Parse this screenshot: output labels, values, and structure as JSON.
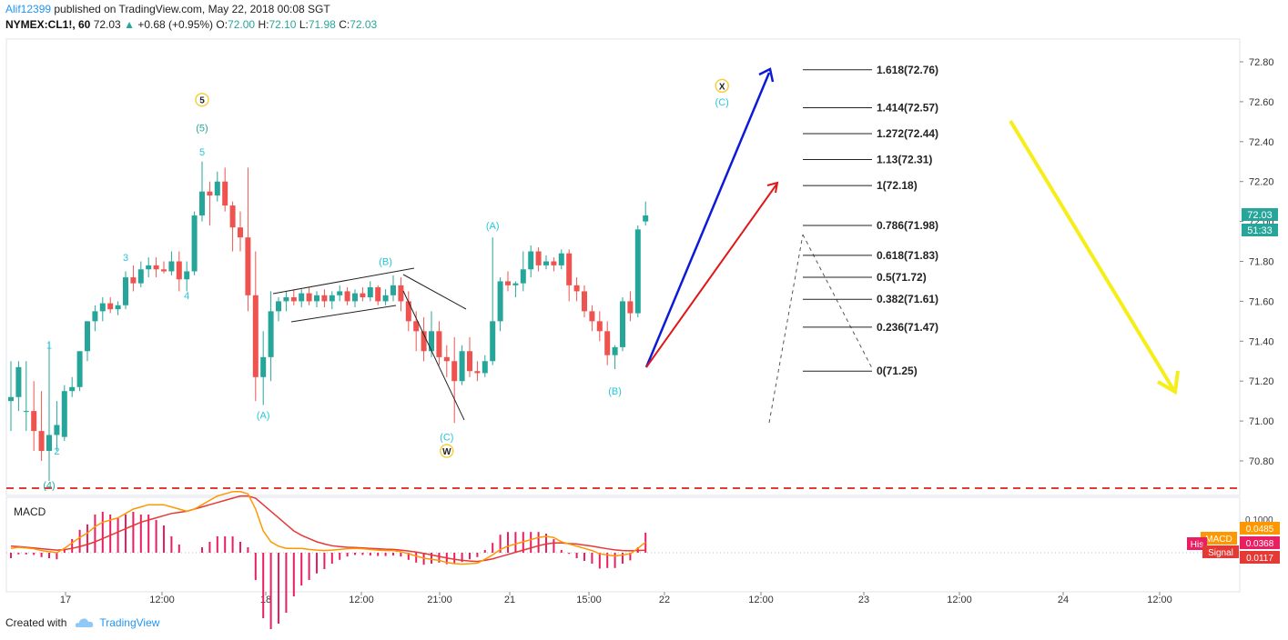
{
  "header": {
    "user": "Alif12399",
    "published": " published on TradingView.com, May 22, 2018 00:08 SGT",
    "symbol": "NYMEX:CL1!, 60",
    "last": "72.03",
    "arrow": "▲",
    "change": "+0.68 (+0.95%)",
    "o_label": "O:",
    "o_val": "72.00",
    "h_label": "H:",
    "h_val": "72.10",
    "l_label": "L:",
    "l_val": "71.98",
    "c_label": "C:",
    "c_val": "72.03"
  },
  "footer": {
    "created": "Created with",
    "brand": "TradingView"
  },
  "colors": {
    "up": "#26a69a",
    "down": "#ef5350",
    "blue": "#2196f3",
    "yellow": "#ffeb3b"
  },
  "chart_data": {
    "type": "candlestick",
    "symbol": "NYMEX:CL1!",
    "interval": "60",
    "price_axis": {
      "ticks": [
        "72.80",
        "72.60",
        "72.40",
        "72.20",
        "72.00",
        "71.80",
        "71.60",
        "71.40",
        "71.20",
        "71.00",
        "70.80"
      ],
      "range": [
        70.65,
        72.92
      ]
    },
    "time_axis": {
      "ticks": [
        "17",
        "12:00",
        "18",
        "12:00",
        "21:00",
        "21",
        "15:00",
        "22",
        "12:00",
        "23",
        "12:00",
        "24",
        "12:00"
      ]
    },
    "last_price_label": "72.03",
    "countdown_label": "51:33",
    "candles": [
      {
        "o": 71.1,
        "h": 71.3,
        "l": 70.95,
        "c": 71.12
      },
      {
        "o": 71.12,
        "h": 71.3,
        "l": 71.05,
        "c": 71.27
      },
      {
        "o": 71.05,
        "h": 71.3,
        "l": 70.95,
        "c": 71.05
      },
      {
        "o": 71.05,
        "h": 71.2,
        "l": 70.85,
        "c": 70.95
      },
      {
        "o": 70.95,
        "h": 71.15,
        "l": 70.8,
        "c": 70.85
      },
      {
        "o": 70.85,
        "h": 71.4,
        "l": 70.7,
        "c": 70.93
      },
      {
        "o": 70.93,
        "h": 71.1,
        "l": 70.85,
        "c": 70.98
      },
      {
        "o": 70.92,
        "h": 71.18,
        "l": 70.9,
        "c": 71.15
      },
      {
        "o": 71.15,
        "h": 71.22,
        "l": 71.12,
        "c": 71.17
      },
      {
        "o": 71.17,
        "h": 71.35,
        "l": 71.15,
        "c": 71.35
      },
      {
        "o": 71.35,
        "h": 71.5,
        "l": 71.3,
        "c": 71.5
      },
      {
        "o": 71.5,
        "h": 71.58,
        "l": 71.45,
        "c": 71.55
      },
      {
        "o": 71.55,
        "h": 71.62,
        "l": 71.5,
        "c": 71.59
      },
      {
        "o": 71.59,
        "h": 71.62,
        "l": 71.54,
        "c": 71.56
      },
      {
        "o": 71.56,
        "h": 71.6,
        "l": 71.53,
        "c": 71.58
      },
      {
        "o": 71.58,
        "h": 71.75,
        "l": 71.56,
        "c": 71.72
      },
      {
        "o": 71.72,
        "h": 71.78,
        "l": 71.65,
        "c": 71.69
      },
      {
        "o": 71.69,
        "h": 71.8,
        "l": 71.67,
        "c": 71.76
      },
      {
        "o": 71.76,
        "h": 71.82,
        "l": 71.72,
        "c": 71.78
      },
      {
        "o": 71.78,
        "h": 71.82,
        "l": 71.72,
        "c": 71.76
      },
      {
        "o": 71.76,
        "h": 71.8,
        "l": 71.74,
        "c": 71.75
      },
      {
        "o": 71.75,
        "h": 71.85,
        "l": 71.73,
        "c": 71.8
      },
      {
        "o": 71.8,
        "h": 71.85,
        "l": 71.65,
        "c": 71.71
      },
      {
        "o": 71.71,
        "h": 71.8,
        "l": 71.65,
        "c": 71.75
      },
      {
        "o": 71.75,
        "h": 72.05,
        "l": 71.73,
        "c": 72.03
      },
      {
        "o": 72.03,
        "h": 72.3,
        "l": 72.0,
        "c": 72.15
      },
      {
        "o": 72.15,
        "h": 72.2,
        "l": 71.98,
        "c": 72.13
      },
      {
        "o": 72.13,
        "h": 72.25,
        "l": 72.1,
        "c": 72.2
      },
      {
        "o": 72.2,
        "h": 72.27,
        "l": 72.05,
        "c": 72.08
      },
      {
        "o": 72.08,
        "h": 72.1,
        "l": 71.85,
        "c": 71.97
      },
      {
        "o": 71.97,
        "h": 72.05,
        "l": 71.85,
        "c": 71.92
      },
      {
        "o": 71.92,
        "h": 72.27,
        "l": 71.55,
        "c": 71.63
      },
      {
        "o": 71.63,
        "h": 71.85,
        "l": 71.1,
        "c": 71.22
      },
      {
        "o": 71.22,
        "h": 71.45,
        "l": 71.08,
        "c": 71.32
      },
      {
        "o": 71.32,
        "h": 71.65,
        "l": 71.2,
        "c": 71.55
      },
      {
        "o": 71.55,
        "h": 71.62,
        "l": 71.5,
        "c": 71.6
      },
      {
        "o": 71.6,
        "h": 71.65,
        "l": 71.55,
        "c": 71.62
      },
      {
        "o": 71.62,
        "h": 71.66,
        "l": 71.58,
        "c": 71.6
      },
      {
        "o": 71.6,
        "h": 71.66,
        "l": 71.57,
        "c": 71.64
      },
      {
        "o": 71.64,
        "h": 71.67,
        "l": 71.58,
        "c": 71.6
      },
      {
        "o": 71.6,
        "h": 71.65,
        "l": 71.57,
        "c": 71.63
      },
      {
        "o": 71.63,
        "h": 71.66,
        "l": 71.57,
        "c": 71.6
      },
      {
        "o": 71.6,
        "h": 71.65,
        "l": 71.56,
        "c": 71.63
      },
      {
        "o": 71.63,
        "h": 71.68,
        "l": 71.6,
        "c": 71.65
      },
      {
        "o": 71.65,
        "h": 71.67,
        "l": 71.58,
        "c": 71.6
      },
      {
        "o": 71.6,
        "h": 71.66,
        "l": 71.57,
        "c": 71.64
      },
      {
        "o": 71.64,
        "h": 71.67,
        "l": 71.6,
        "c": 71.62
      },
      {
        "o": 71.62,
        "h": 71.7,
        "l": 71.6,
        "c": 71.67
      },
      {
        "o": 71.67,
        "h": 71.68,
        "l": 71.58,
        "c": 71.6
      },
      {
        "o": 71.6,
        "h": 71.66,
        "l": 71.58,
        "c": 71.63
      },
      {
        "o": 71.63,
        "h": 71.73,
        "l": 71.6,
        "c": 71.68
      },
      {
        "o": 71.68,
        "h": 71.72,
        "l": 71.55,
        "c": 71.6
      },
      {
        "o": 71.6,
        "h": 71.65,
        "l": 71.45,
        "c": 71.5
      },
      {
        "o": 71.5,
        "h": 71.55,
        "l": 71.35,
        "c": 71.45
      },
      {
        "o": 71.45,
        "h": 71.52,
        "l": 71.3,
        "c": 71.35
      },
      {
        "o": 71.35,
        "h": 71.55,
        "l": 71.32,
        "c": 71.45
      },
      {
        "o": 71.45,
        "h": 71.5,
        "l": 71.28,
        "c": 71.32
      },
      {
        "o": 71.32,
        "h": 71.38,
        "l": 71.22,
        "c": 71.3
      },
      {
        "o": 71.3,
        "h": 71.42,
        "l": 70.99,
        "c": 71.2
      },
      {
        "o": 71.2,
        "h": 71.38,
        "l": 71.18,
        "c": 71.35
      },
      {
        "o": 71.35,
        "h": 71.42,
        "l": 71.22,
        "c": 71.25
      },
      {
        "o": 71.25,
        "h": 71.3,
        "l": 71.2,
        "c": 71.24
      },
      {
        "o": 71.24,
        "h": 71.33,
        "l": 71.22,
        "c": 71.3
      },
      {
        "o": 71.3,
        "h": 71.92,
        "l": 71.28,
        "c": 71.5
      },
      {
        "o": 71.5,
        "h": 71.72,
        "l": 71.45,
        "c": 71.7
      },
      {
        "o": 71.7,
        "h": 71.75,
        "l": 71.65,
        "c": 71.68
      },
      {
        "o": 71.68,
        "h": 71.7,
        "l": 71.62,
        "c": 71.69
      },
      {
        "o": 71.69,
        "h": 71.85,
        "l": 71.65,
        "c": 71.76
      },
      {
        "o": 71.76,
        "h": 71.88,
        "l": 71.72,
        "c": 71.85
      },
      {
        "o": 71.85,
        "h": 71.87,
        "l": 71.75,
        "c": 71.78
      },
      {
        "o": 71.78,
        "h": 71.83,
        "l": 71.76,
        "c": 71.8
      },
      {
        "o": 71.8,
        "h": 71.82,
        "l": 71.75,
        "c": 71.78
      },
      {
        "o": 71.78,
        "h": 71.86,
        "l": 71.76,
        "c": 71.84
      },
      {
        "o": 71.84,
        "h": 71.86,
        "l": 71.6,
        "c": 71.68
      },
      {
        "o": 71.68,
        "h": 71.72,
        "l": 71.6,
        "c": 71.65
      },
      {
        "o": 71.65,
        "h": 71.68,
        "l": 71.52,
        "c": 71.55
      },
      {
        "o": 71.55,
        "h": 71.58,
        "l": 71.45,
        "c": 71.5
      },
      {
        "o": 71.5,
        "h": 71.55,
        "l": 71.4,
        "c": 71.45
      },
      {
        "o": 71.45,
        "h": 71.5,
        "l": 71.28,
        "c": 71.33
      },
      {
        "o": 71.33,
        "h": 71.38,
        "l": 71.26,
        "c": 71.37
      },
      {
        "o": 71.37,
        "h": 71.62,
        "l": 71.35,
        "c": 71.6
      },
      {
        "o": 71.6,
        "h": 71.65,
        "l": 71.5,
        "c": 71.54
      },
      {
        "o": 71.54,
        "h": 71.98,
        "l": 71.52,
        "c": 71.96
      },
      {
        "o": 72.0,
        "h": 72.1,
        "l": 71.98,
        "c": 72.03
      }
    ],
    "fibonacci": [
      {
        "ratio": "1.618",
        "price": 72.76,
        "label": "1.618(72.76)"
      },
      {
        "ratio": "1.414",
        "price": 72.57,
        "label": "1.414(72.57)"
      },
      {
        "ratio": "1.272",
        "price": 72.44,
        "label": "1.272(72.44)"
      },
      {
        "ratio": "1.13",
        "price": 72.31,
        "label": "1.13(72.31)"
      },
      {
        "ratio": "1",
        "price": 72.18,
        "label": "1(72.18)"
      },
      {
        "ratio": "0.786",
        "price": 71.98,
        "label": "0.786(71.98)"
      },
      {
        "ratio": "0.618",
        "price": 71.83,
        "label": "0.618(71.83)"
      },
      {
        "ratio": "0.5",
        "price": 71.72,
        "label": "0.5(71.72)"
      },
      {
        "ratio": "0.382",
        "price": 71.61,
        "label": "0.382(71.61)"
      },
      {
        "ratio": "0.236",
        "price": 71.47,
        "label": "0.236(71.47)"
      },
      {
        "ratio": "0",
        "price": 71.25,
        "label": "0(71.25)"
      }
    ],
    "support_line": 70.7,
    "wave_labels": [
      {
        "text": "(4)",
        "color": "#26a69a",
        "bar": 5,
        "price": 70.68,
        "circle": false
      },
      {
        "text": "1",
        "color": "#26c6da",
        "bar": 5,
        "price": 71.38,
        "circle": false
      },
      {
        "text": "2",
        "color": "#26c6da",
        "bar": 6,
        "price": 70.85,
        "circle": false
      },
      {
        "text": "3",
        "color": "#26c6da",
        "bar": 15,
        "price": 71.82,
        "circle": false
      },
      {
        "text": "4",
        "color": "#26c6da",
        "bar": 23,
        "price": 71.63,
        "circle": false
      },
      {
        "text": "5",
        "color": "#26c6da",
        "bar": 25,
        "price": 72.35,
        "circle": false
      },
      {
        "text": "(5)",
        "color": "#26a69a",
        "bar": 25,
        "price": 72.47,
        "circle": false
      },
      {
        "text": "5",
        "color": "#f4d03f",
        "bar": 25,
        "price": 72.61,
        "circle": true
      },
      {
        "text": "(A)",
        "color": "#26c6da",
        "bar": 33,
        "price": 71.03,
        "circle": false
      },
      {
        "text": "(B)",
        "color": "#26c6da",
        "bar": 49,
        "price": 71.8,
        "circle": false
      },
      {
        "text": "(C)",
        "color": "#26c6da",
        "bar": 57,
        "price": 70.92,
        "circle": false
      },
      {
        "text": "W",
        "color": "#f4d03f",
        "bar": 57,
        "price": 70.85,
        "circle": true
      },
      {
        "text": "(A)",
        "color": "#26c6da",
        "bar": 63,
        "price": 71.98,
        "circle": false
      },
      {
        "text": "(B)",
        "color": "#26c6da",
        "bar": 79,
        "price": 71.15,
        "circle": false
      },
      {
        "text": "X",
        "color": "#f4d03f",
        "bar": 93,
        "price": 72.68,
        "circle": true
      },
      {
        "text": "(C)",
        "color": "#26c6da",
        "bar": 93,
        "price": 72.6,
        "circle": false
      }
    ],
    "macd": {
      "label": "MACD",
      "axis_tick": "0.1000",
      "values": {
        "macd": "0.0485",
        "signal": "0.0117",
        "histogram": "0.0368"
      },
      "legend": {
        "macd": "MACD",
        "signal": "Signal",
        "histogram": "His"
      },
      "macd_line": [
        0.02,
        0.025,
        0.022,
        0.018,
        0.01,
        0.005,
        0.0,
        0.02,
        0.045,
        0.07,
        0.09,
        0.12,
        0.14,
        0.15,
        0.16,
        0.18,
        0.2,
        0.21,
        0.22,
        0.22,
        0.22,
        0.21,
        0.2,
        0.19,
        0.2,
        0.22,
        0.24,
        0.26,
        0.27,
        0.28,
        0.28,
        0.27,
        0.2,
        0.1,
        0.05,
        0.03,
        0.02,
        0.02,
        0.02,
        0.015,
        0.012,
        0.01,
        0.012,
        0.015,
        0.018,
        0.02,
        0.018,
        0.015,
        0.012,
        0.01,
        0.01,
        0.005,
        -0.005,
        -0.015,
        -0.025,
        -0.03,
        -0.035,
        -0.045,
        -0.05,
        -0.052,
        -0.05,
        -0.048,
        -0.03,
        -0.01,
        0.015,
        0.03,
        0.04,
        0.05,
        0.06,
        0.07,
        0.075,
        0.07,
        0.05,
        0.04,
        0.03,
        0.02,
        0.01,
        -0.005,
        -0.01,
        -0.015,
        -0.01,
        -0.005,
        0.02,
        0.0485
      ],
      "signal_line": [
        0.03,
        0.028,
        0.025,
        0.022,
        0.018,
        0.015,
        0.012,
        0.014,
        0.02,
        0.028,
        0.038,
        0.05,
        0.065,
        0.08,
        0.095,
        0.11,
        0.125,
        0.14,
        0.15,
        0.16,
        0.17,
        0.18,
        0.185,
        0.19,
        0.2,
        0.21,
        0.22,
        0.23,
        0.24,
        0.25,
        0.26,
        0.26,
        0.25,
        0.22,
        0.19,
        0.16,
        0.13,
        0.1,
        0.08,
        0.065,
        0.05,
        0.04,
        0.032,
        0.028,
        0.025,
        0.024,
        0.022,
        0.02,
        0.018,
        0.016,
        0.015,
        0.012,
        0.008,
        0.003,
        -0.003,
        -0.01,
        -0.017,
        -0.024,
        -0.03,
        -0.035,
        -0.038,
        -0.04,
        -0.035,
        -0.028,
        -0.018,
        -0.008,
        0.002,
        0.012,
        0.022,
        0.032,
        0.04,
        0.045,
        0.045,
        0.042,
        0.04,
        0.035,
        0.03,
        0.024,
        0.018,
        0.013,
        0.01,
        0.009,
        0.01,
        0.0117
      ]
    }
  }
}
